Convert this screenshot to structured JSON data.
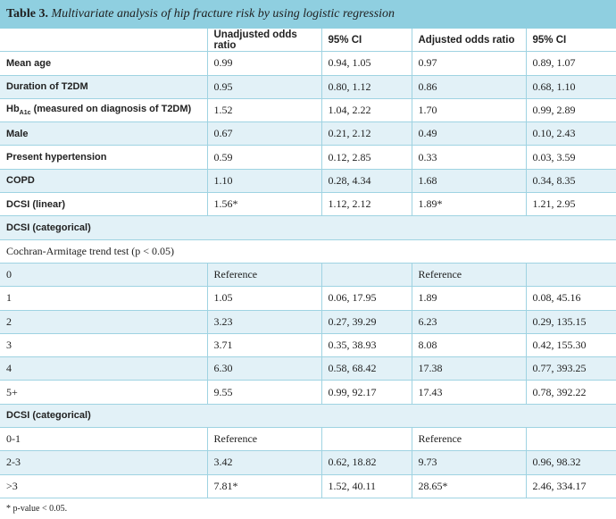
{
  "table_label": "Table 3.",
  "caption": "Multivariate analysis of hip fracture risk by using logistic regression",
  "headers": [
    "",
    "Unadjusted odds ratio",
    "95% CI",
    "Adjusted odds ratio",
    "95% CI"
  ],
  "rows": [
    {
      "type": "row",
      "label": "Mean age",
      "cells": [
        "0.99",
        "0.94, 1.05",
        "0.97",
        "0.89, 1.07"
      ]
    },
    {
      "type": "row",
      "label": "Duration of T2DM",
      "cells": [
        "0.95",
        "0.80, 1.12",
        "0.86",
        "0.68, 1.10"
      ]
    },
    {
      "type": "row",
      "label": "Hb",
      "label_sub": "A1c",
      "label_rest": " (measured on diagnosis of T2DM)",
      "cells": [
        "1.52",
        "1.04, 2.22",
        "1.70",
        "0.99, 2.89"
      ]
    },
    {
      "type": "row",
      "label": "Male",
      "cells": [
        "0.67",
        "0.21, 2.12",
        "0.49",
        "0.10, 2.43"
      ]
    },
    {
      "type": "row",
      "label": "Present hypertension",
      "cells": [
        "0.59",
        "0.12, 2.85",
        "0.33",
        "0.03, 3.59"
      ]
    },
    {
      "type": "row",
      "label": "COPD",
      "cells": [
        "1.10",
        "0.28, 4.34",
        "1.68",
        "0.34, 8.35"
      ]
    },
    {
      "type": "row",
      "label": "DCSI (linear)",
      "cells": [
        "1.56*",
        "1.12, 2.12",
        "1.89*",
        "1.21, 2.95"
      ]
    },
    {
      "type": "section",
      "label": "DCSI (categorical)"
    },
    {
      "type": "note",
      "label": "Cochran-Armitage trend test (p < 0.05)"
    },
    {
      "type": "plain",
      "label": "0",
      "cells": [
        "Reference",
        "",
        "Reference",
        ""
      ]
    },
    {
      "type": "plain",
      "label": "1",
      "cells": [
        "1.05",
        "0.06, 17.95",
        "1.89",
        "0.08, 45.16"
      ]
    },
    {
      "type": "plain",
      "label": "2",
      "cells": [
        "3.23",
        "0.27, 39.29",
        "6.23",
        "0.29, 135.15"
      ]
    },
    {
      "type": "plain",
      "label": "3",
      "cells": [
        "3.71",
        "0.35, 38.93",
        "8.08",
        "0.42, 155.30"
      ]
    },
    {
      "type": "plain",
      "label": "4",
      "cells": [
        "6.30",
        "0.58, 68.42",
        "17.38",
        "0.77, 393.25"
      ]
    },
    {
      "type": "plain",
      "label": "5+",
      "cells": [
        "9.55",
        "0.99, 92.17",
        "17.43",
        "0.78, 392.22"
      ]
    },
    {
      "type": "section",
      "label": "DCSI (categorical)"
    },
    {
      "type": "plain",
      "label": "0-1",
      "cells": [
        "Reference",
        "",
        "Reference",
        ""
      ]
    },
    {
      "type": "plain",
      "label": "2-3",
      "cells": [
        "3.42",
        "0.62, 18.82",
        "9.73",
        "0.96, 98.32"
      ]
    },
    {
      "type": "plain",
      "label": ">3",
      "cells": [
        "7.81*",
        "1.52, 40.11",
        "28.65*",
        "2.46, 334.17"
      ]
    }
  ],
  "footnote": "* p-value < 0.05."
}
